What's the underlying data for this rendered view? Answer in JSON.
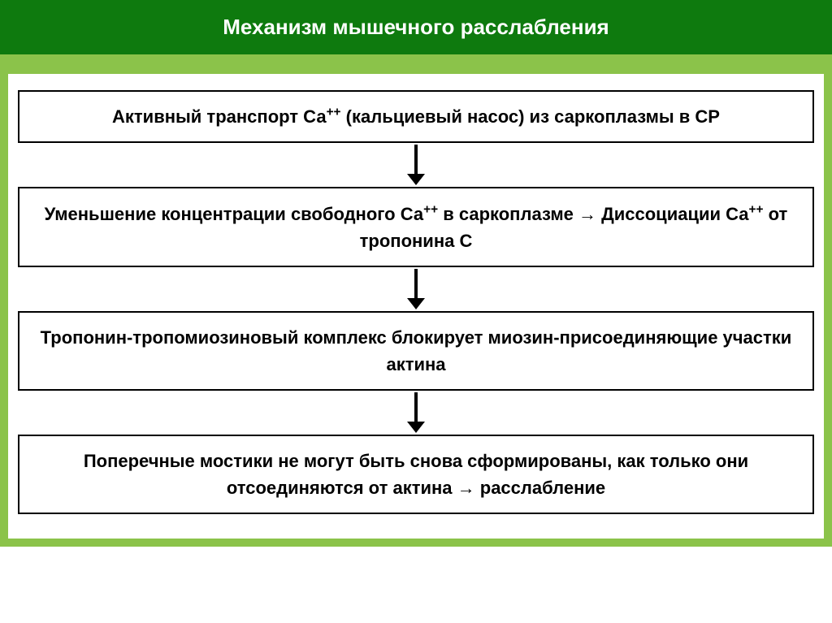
{
  "header": {
    "title": "Механизм мышечного расслабления",
    "background_color": "#0e7a0e",
    "text_color": "#ffffff",
    "font_size": 26
  },
  "strip": {
    "color": "#8bc34a",
    "height": 14
  },
  "content_bg": "#8bc34a",
  "canvas_bg": "#ffffff",
  "flowchart": {
    "type": "flowchart",
    "box_border_color": "#000000",
    "box_border_width": 2,
    "box_font_size": 22,
    "box_text_color": "#000000",
    "arrow_color": "#000000",
    "arrow_length": 42,
    "arrow_head_width": 22,
    "arrow_head_height": 14,
    "arrow_stroke_width": 4,
    "nodes": [
      {
        "id": "box1",
        "text_html": "Активный транспорт Са<sup>++</sup> (кальциевый насос) из саркоплазмы в СР"
      },
      {
        "id": "box2",
        "text_html": "Уменьшение концентрации свободного Са<sup>++</sup> в саркоплазме → Диссоциации Са<sup>++</sup> от тропонина С"
      },
      {
        "id": "box3",
        "text_html": "Тропонин-тропомиозиновый комплекс блокирует миозин-присоединяющие участки актина"
      },
      {
        "id": "box4",
        "text_html": "Поперечные мостики не могут быть снова сформированы, как только они отсоединяются от актина → расслабление"
      }
    ],
    "edges": [
      {
        "from": "box1",
        "to": "box2"
      },
      {
        "from": "box2",
        "to": "box3"
      },
      {
        "from": "box3",
        "to": "box4"
      }
    ]
  }
}
